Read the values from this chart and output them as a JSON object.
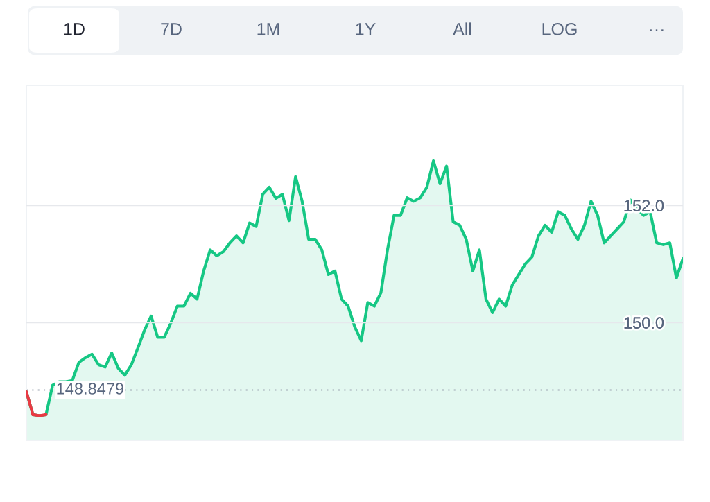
{
  "chart_data": {
    "type": "area",
    "annotations": [
      "1D",
      "7D",
      "1M",
      "1Y",
      "All",
      "LOG",
      "···"
    ],
    "categories": [
      null,
      null,
      null,
      null,
      null,
      null,
      null,
      null,
      null,
      null,
      null,
      null,
      null,
      null,
      null,
      null,
      null,
      null,
      null,
      null,
      null,
      null,
      null,
      null,
      null,
      null,
      null,
      null,
      null,
      null,
      null,
      null,
      null,
      null,
      null,
      null,
      null,
      null,
      null,
      null,
      null,
      null,
      null,
      null,
      null,
      null,
      null,
      null,
      null,
      null,
      null,
      null,
      null,
      null,
      null,
      null,
      null,
      null,
      null,
      null,
      null,
      null,
      null,
      null,
      null,
      null,
      null,
      null,
      null,
      null,
      null,
      null,
      null,
      null,
      null,
      null,
      null,
      null,
      null,
      null,
      null,
      null,
      null,
      null,
      null,
      null,
      null,
      null,
      null,
      null,
      null,
      null,
      null,
      null,
      null,
      null,
      null,
      null,
      null,
      null,
      null
    ],
    "series": [
      {
        "color": "#16c784",
        "colors": [
          "#ea3943",
          "#ea3943",
          "#ea3943",
          "#ea3943",
          "#16c784",
          "#16c784",
          "#16c784",
          "#16c784",
          "#16c784",
          "#16c784",
          "#16c784",
          "#16c784",
          "#16c784",
          "#16c784",
          "#16c784",
          "#16c784",
          "#16c784",
          "#16c784",
          "#16c784",
          "#16c784",
          "#16c784",
          "#16c784",
          "#16c784",
          "#16c784",
          "#16c784",
          "#16c784",
          "#16c784",
          "#16c784",
          "#16c784",
          "#16c784",
          "#16c784",
          "#16c784",
          "#16c784",
          "#16c784",
          "#16c784",
          "#16c784",
          "#16c784",
          "#16c784",
          "#16c784",
          "#16c784",
          "#16c784",
          "#16c784",
          "#16c784",
          "#16c784",
          "#16c784",
          "#16c784",
          "#16c784",
          "#16c784",
          "#16c784",
          "#16c784",
          "#16c784",
          "#16c784",
          "#16c784",
          "#16c784",
          "#16c784",
          "#16c784",
          "#16c784",
          "#16c784",
          "#16c784",
          "#16c784",
          "#16c784",
          "#16c784",
          "#16c784",
          "#16c784",
          "#16c784",
          "#16c784",
          "#16c784",
          "#16c784",
          "#16c784",
          "#16c784",
          "#16c784",
          "#16c784",
          "#16c784",
          "#16c784",
          "#16c784",
          "#16c784",
          "#16c784",
          "#16c784",
          "#16c784",
          "#16c784",
          "#16c784",
          "#16c784",
          "#16c784",
          "#16c784",
          "#16c784",
          "#16c784",
          "#16c784",
          "#16c784",
          "#16c784",
          "#16c784",
          "#16c784",
          "#16c784",
          "#16c784",
          "#16c784",
          "#16c784",
          "#16c784",
          "#16c784",
          "#16c784",
          "#16c784",
          "#16c784",
          "#16c784"
        ],
        "values": [
          148.82,
          148.43,
          148.41,
          148.43,
          148.93,
          148.99,
          148.99,
          149.01,
          149.32,
          149.4,
          149.46,
          149.28,
          149.24,
          149.48,
          149.22,
          149.1,
          149.28,
          149.57,
          149.87,
          150.11,
          149.75,
          149.75,
          149.99,
          150.28,
          150.28,
          150.5,
          150.4,
          150.88,
          151.24,
          151.14,
          151.21,
          151.36,
          151.48,
          151.36,
          151.7,
          151.64,
          152.19,
          152.31,
          152.12,
          152.19,
          151.74,
          152.49,
          152.07,
          151.42,
          151.42,
          151.24,
          150.82,
          150.88,
          150.4,
          150.28,
          149.93,
          149.69,
          150.34,
          150.28,
          150.51,
          151.24,
          151.83,
          151.83,
          152.13,
          152.07,
          152.13,
          152.31,
          152.76,
          152.37,
          152.67,
          151.72,
          151.66,
          151.42,
          150.88,
          151.24,
          150.4,
          150.17,
          150.4,
          150.28,
          150.64,
          150.82,
          151.0,
          151.12,
          151.48,
          151.66,
          151.54,
          151.89,
          151.83,
          151.6,
          151.42,
          151.66,
          152.07,
          151.83,
          151.36,
          151.48,
          151.6,
          151.72,
          152.09,
          151.95,
          151.83,
          151.89,
          151.36,
          151.33,
          151.36,
          150.76,
          151.09
        ]
      }
    ],
    "ylim": [
      147.99,
      154.05
    ],
    "yticks": [
      {
        "value": 150,
        "label": "150.0"
      },
      {
        "value": 152,
        "label": "152.0"
      }
    ],
    "ref_lines": [
      {
        "axis": "y",
        "value": 148.8479,
        "label": "148.8479",
        "color": "#a0a7b4",
        "line_style": "dotted"
      }
    ],
    "grid": "y",
    "tick_labels": "y"
  }
}
